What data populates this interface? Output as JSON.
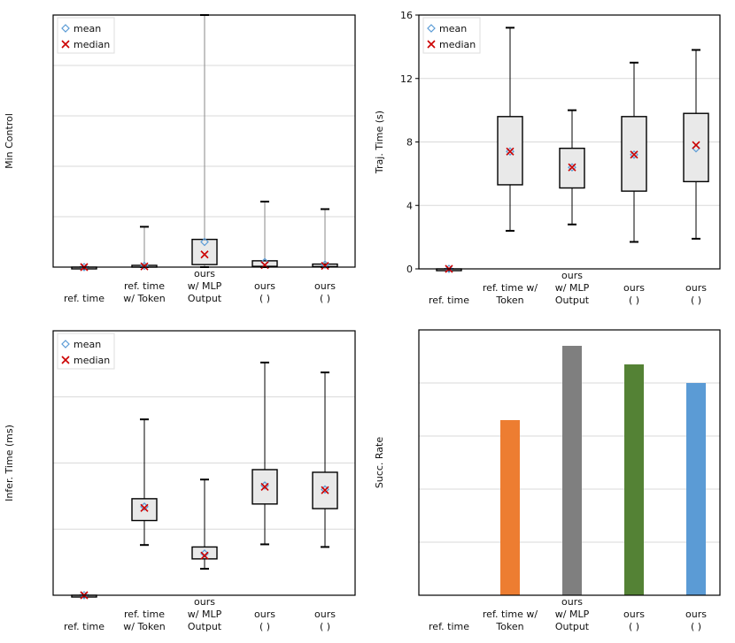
{
  "legend": {
    "mean_label": "mean",
    "median_label": "median"
  },
  "colors": {
    "box_fill": "#e9e9e9",
    "box_stroke": "#000000",
    "whisker_gray": "#8a8a8a",
    "mean_marker": "#5b9bd5",
    "median_marker": "#cc0000",
    "grid": "#d9d9d9"
  },
  "chart_data": [
    {
      "id": "min-control",
      "type": "box",
      "ylabel": "Min Control",
      "ylim": [
        0,
        10
      ],
      "yticks": [],
      "grid_values": [
        2,
        4,
        6,
        8
      ],
      "legend_position": "top-left",
      "categories": [
        {
          "lines": [
            "ref. time"
          ]
        },
        {
          "lines": [
            "ref. time",
            "w/ Token"
          ]
        },
        {
          "lines": [
            "ours",
            "w/ MLP",
            "Output"
          ]
        },
        {
          "lines": [
            "ours",
            "(           )"
          ]
        },
        {
          "lines": [
            "ours",
            "(           )"
          ]
        }
      ],
      "boxes": [
        {
          "min": 0.0,
          "q1": 0.0,
          "median": 0.0,
          "q3": 0.0,
          "max": 0.0,
          "mean": 0.0,
          "whisker": "gray"
        },
        {
          "min": 0.0,
          "q1": 0.02,
          "median": 0.03,
          "q3": 0.07,
          "max": 1.6,
          "mean": 0.05,
          "whisker": "gray"
        },
        {
          "min": 0.0,
          "q1": 0.1,
          "median": 0.5,
          "q3": 1.1,
          "max": 10.0,
          "mean": 1.0,
          "whisker": "gray"
        },
        {
          "min": 0.0,
          "q1": 0.03,
          "median": 0.08,
          "q3": 0.25,
          "max": 2.6,
          "mean": 0.2,
          "whisker": "gray"
        },
        {
          "min": 0.0,
          "q1": 0.02,
          "median": 0.05,
          "q3": 0.12,
          "max": 2.3,
          "mean": 0.1,
          "whisker": "gray"
        }
      ]
    },
    {
      "id": "traj-time",
      "type": "box",
      "ylabel": "Traj. Time (s)",
      "ylim": [
        0,
        16
      ],
      "yticks": [
        0,
        4,
        8,
        12,
        16
      ],
      "grid_values": [
        4,
        8,
        12
      ],
      "legend_position": "top-left",
      "categories": [
        {
          "lines": [
            "ref. time"
          ]
        },
        {
          "lines": [
            "ref. time w/",
            "Token"
          ]
        },
        {
          "lines": [
            "ours",
            "w/ MLP",
            "Output"
          ]
        },
        {
          "lines": [
            "ours",
            "(           )"
          ]
        },
        {
          "lines": [
            "ours",
            "(           )"
          ]
        }
      ],
      "boxes": [
        {
          "min": 0.0,
          "q1": 0.0,
          "median": 0.0,
          "q3": 0.0,
          "max": 0.0,
          "mean": 0.0,
          "whisker": "black"
        },
        {
          "min": 2.4,
          "q1": 5.3,
          "median": 7.4,
          "q3": 9.6,
          "max": 15.2,
          "mean": 7.4,
          "whisker": "black"
        },
        {
          "min": 2.8,
          "q1": 5.1,
          "median": 6.4,
          "q3": 7.6,
          "max": 10.0,
          "mean": 6.4,
          "whisker": "black"
        },
        {
          "min": 1.7,
          "q1": 4.9,
          "median": 7.2,
          "q3": 9.6,
          "max": 13.0,
          "mean": 7.2,
          "whisker": "black"
        },
        {
          "min": 1.9,
          "q1": 5.5,
          "median": 7.8,
          "q3": 9.8,
          "max": 13.8,
          "mean": 7.6,
          "whisker": "black"
        }
      ]
    },
    {
      "id": "infer-time",
      "type": "box",
      "ylabel": "Infer. Time (ms)",
      "ylim": [
        0,
        40
      ],
      "yticks": [],
      "grid_values": [
        10,
        20,
        30
      ],
      "legend_position": "top-left",
      "categories": [
        {
          "lines": [
            "ref. time"
          ]
        },
        {
          "lines": [
            "ref. time",
            "w/ Token"
          ]
        },
        {
          "lines": [
            "ours",
            "w/ MLP",
            "Output"
          ]
        },
        {
          "lines": [
            "ours",
            "(           )"
          ]
        },
        {
          "lines": [
            "ours",
            "(           )"
          ]
        }
      ],
      "boxes": [
        {
          "min": 0.0,
          "q1": 0.0,
          "median": 0.0,
          "q3": 0.0,
          "max": 0.0,
          "mean": 0.0,
          "whisker": "black"
        },
        {
          "min": 7.6,
          "q1": 11.3,
          "median": 13.2,
          "q3": 14.6,
          "max": 26.6,
          "mean": 13.4,
          "whisker": "black"
        },
        {
          "min": 4.0,
          "q1": 5.5,
          "median": 6.0,
          "q3": 7.3,
          "max": 17.5,
          "mean": 6.3,
          "whisker": "black"
        },
        {
          "min": 7.7,
          "q1": 13.8,
          "median": 16.4,
          "q3": 19.0,
          "max": 35.2,
          "mean": 16.6,
          "whisker": "black"
        },
        {
          "min": 7.3,
          "q1": 13.1,
          "median": 15.9,
          "q3": 18.6,
          "max": 33.7,
          "mean": 16.0,
          "whisker": "black"
        }
      ]
    },
    {
      "id": "succ-rate",
      "type": "bar",
      "ylabel": "Succ. Rate",
      "ylim": [
        0,
        1.0
      ],
      "yticks": [],
      "grid_values": [
        0.2,
        0.4,
        0.6,
        0.8
      ],
      "categories": [
        {
          "lines": [
            "ref. time"
          ]
        },
        {
          "lines": [
            "ref. time w/",
            "Token"
          ]
        },
        {
          "lines": [
            "ours",
            "w/ MLP",
            "Output"
          ]
        },
        {
          "lines": [
            "ours",
            "(           )"
          ]
        },
        {
          "lines": [
            "ours",
            "(           )"
          ]
        }
      ],
      "values": [
        0.0,
        0.66,
        0.94,
        0.87,
        0.8
      ],
      "bar_colors": [
        "#ed7d31",
        "#ed7d31",
        "#7f7f7f",
        "#548235",
        "#5b9bd5"
      ]
    }
  ]
}
